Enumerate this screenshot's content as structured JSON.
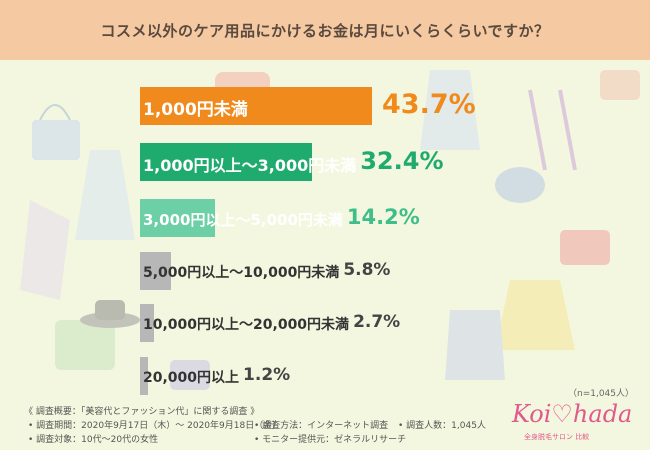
{
  "title": "コスメ以外のケア用品にかけるお金は月にいくらくらいですか？",
  "chart_data": {
    "type": "bar",
    "orientation": "horizontal",
    "categories": [
      "1,000円未満",
      "1,000円以上～3,000円未満",
      "3,000円以上～5,000円未満",
      "5,000円以上～10,000円未満",
      "10,000円以上～20,000円未満",
      "20,000円以上"
    ],
    "values": [
      43.7,
      32.4,
      14.2,
      5.8,
      2.7,
      1.2
    ],
    "value_labels": [
      "43.7%",
      "32.4%",
      "14.2%",
      "5.8%",
      "2.7%",
      "1.2%"
    ],
    "unit": "%",
    "colors": [
      "#f08a1c",
      "#1faa6e",
      "#6dcfa6",
      "#b7b7b7",
      "#b7b7b7",
      "#b7b7b7"
    ],
    "label_colors": [
      "#ffffff",
      "#ffffff",
      "#ffffff",
      "#333333",
      "#333333",
      "#333333"
    ],
    "pct_colors": [
      "#f08a1c",
      "#1faa6e",
      "#3fbe8a",
      "#444444",
      "#444444",
      "#444444"
    ]
  },
  "sample_note": "（n=1,045人）",
  "footer": {
    "heading": "《 調査概要：「美容代とファッション代」に関する調査 》",
    "period": "• 調査期間：2020年9月17日（木）～ 2020年9月18日（金）",
    "method": "• 調査方法：インターネット調査",
    "count": "• 調査人数：1,045人",
    "target": "• 調査対象：10代～20代の女性",
    "provider": "• モニター提供元：ゼネラルリサーチ"
  },
  "logo": {
    "text": "Koi♡hada",
    "subtitle": "全身脱毛サロン 比較"
  }
}
